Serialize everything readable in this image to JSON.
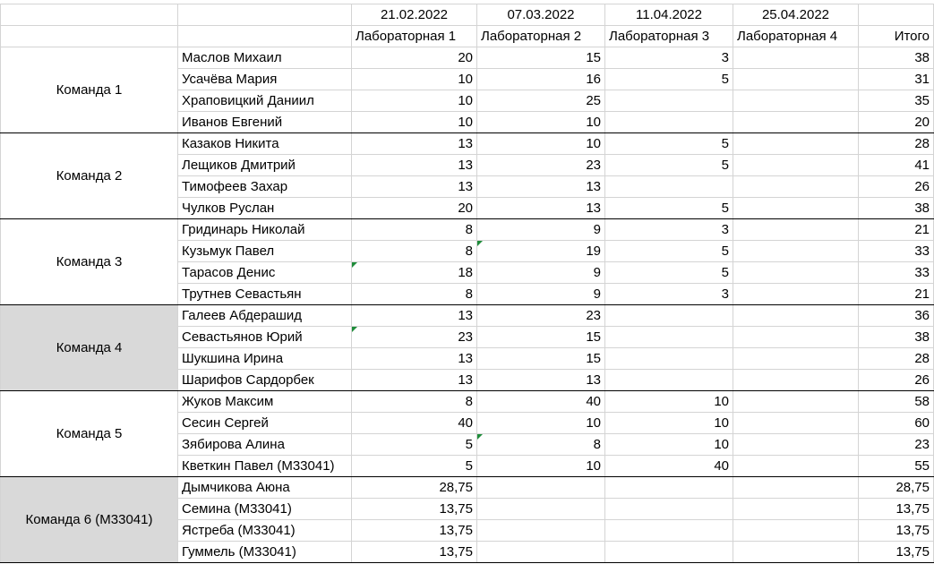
{
  "dates": [
    "21.02.2022",
    "07.03.2022",
    "11.04.2022",
    "25.04.2022"
  ],
  "labs": [
    "Лабораторная 1",
    "Лабораторная 2",
    "Лабораторная 3",
    "Лабораторная 4"
  ],
  "total_label": "Итого",
  "teams": [
    {
      "name": "Команда 1",
      "gray": false,
      "rows": [
        {
          "name": "Маслов Михаил",
          "l1": "20",
          "l2": "15",
          "l3": "3",
          "l4": "",
          "total": "38"
        },
        {
          "name": "Усачёва Мария",
          "l1": "10",
          "l2": "16",
          "l3": "5",
          "l4": "",
          "total": "31"
        },
        {
          "name": "Храповицкий Даниил",
          "l1": "10",
          "l2": "25",
          "l3": "",
          "l4": "",
          "total": "35"
        },
        {
          "name": "Иванов Евгений",
          "l1": "10",
          "l2": "10",
          "l3": "",
          "l4": "",
          "total": "20"
        }
      ]
    },
    {
      "name": "Команда 2",
      "gray": false,
      "rows": [
        {
          "name": "Казаков Никита",
          "l1": "13",
          "l2": "10",
          "l3": "5",
          "l4": "",
          "total": "28"
        },
        {
          "name": "Лещиков Дмитрий",
          "l1": "13",
          "l2": "23",
          "l3": "5",
          "l4": "",
          "total": "41"
        },
        {
          "name": "Тимофеев Захар",
          "l1": "13",
          "l2": "13",
          "l3": "",
          "l4": "",
          "total": "26"
        },
        {
          "name": "Чулков Руслан",
          "l1": "20",
          "l2": "13",
          "l3": "5",
          "l4": "",
          "total": "38"
        }
      ]
    },
    {
      "name": "Команда 3",
      "gray": false,
      "rows": [
        {
          "name": "Гридинарь Николай",
          "l1": "8",
          "l2": "9",
          "l3": "3",
          "l4": "",
          "total": "21"
        },
        {
          "name": "Кузьмук Павел",
          "l1": "8",
          "l2": "19",
          "l3": "5",
          "l4": "",
          "total": "33"
        },
        {
          "name": "Тарасов Денис",
          "l1": "18",
          "l2": "9",
          "l3": "5",
          "l4": "",
          "total": "33"
        },
        {
          "name": "Трутнев Севастьян",
          "l1": "8",
          "l2": "9",
          "l3": "3",
          "l4": "",
          "total": "21"
        }
      ]
    },
    {
      "name": "Команда 4",
      "gray": true,
      "rows": [
        {
          "name": "Галеев Абдерашид",
          "l1": "13",
          "l2": "23",
          "l3": "",
          "l4": "",
          "total": "36"
        },
        {
          "name": "Севастьянов Юрий",
          "l1": "23",
          "l2": "15",
          "l3": "",
          "l4": "",
          "total": "38"
        },
        {
          "name": "Шукшина Ирина",
          "l1": "13",
          "l2": "15",
          "l3": "",
          "l4": "",
          "total": "28"
        },
        {
          "name": "Шарифов Сардорбек",
          "l1": "13",
          "l2": "13",
          "l3": "",
          "l4": "",
          "total": "26"
        }
      ]
    },
    {
      "name": "Команда 5",
      "gray": false,
      "rows": [
        {
          "name": "Жуков Максим",
          "l1": "8",
          "l2": "40",
          "l3": "10",
          "l4": "",
          "total": "58"
        },
        {
          "name": "Сесин Сергей",
          "l1": "40",
          "l2": "10",
          "l3": "10",
          "l4": "",
          "total": "60"
        },
        {
          "name": "Зябирова Алина",
          "l1": "5",
          "l2": "8",
          "l3": "10",
          "l4": "",
          "total": "23"
        },
        {
          "name": "Кветкин Павел (М33041)",
          "l1": "5",
          "l2": "10",
          "l3": "40",
          "l4": "",
          "total": "55"
        }
      ]
    },
    {
      "name": "Команда 6 (М33041)",
      "gray": true,
      "rows": [
        {
          "name": "Дымчикова Аюна",
          "l1": "28,75",
          "l2": "",
          "l3": "",
          "l4": "",
          "total": "28,75"
        },
        {
          "name": "Семина (М33041)",
          "l1": "13,75",
          "l2": "",
          "l3": "",
          "l4": "",
          "total": "13,75"
        },
        {
          "name": "Ястреба (М33041)",
          "l1": "13,75",
          "l2": "",
          "l3": "",
          "l4": "",
          "total": "13,75"
        },
        {
          "name": "Гуммель (М33041)",
          "l1": "13,75",
          "l2": "",
          "l3": "",
          "l4": "",
          "total": "13,75"
        }
      ]
    }
  ]
}
